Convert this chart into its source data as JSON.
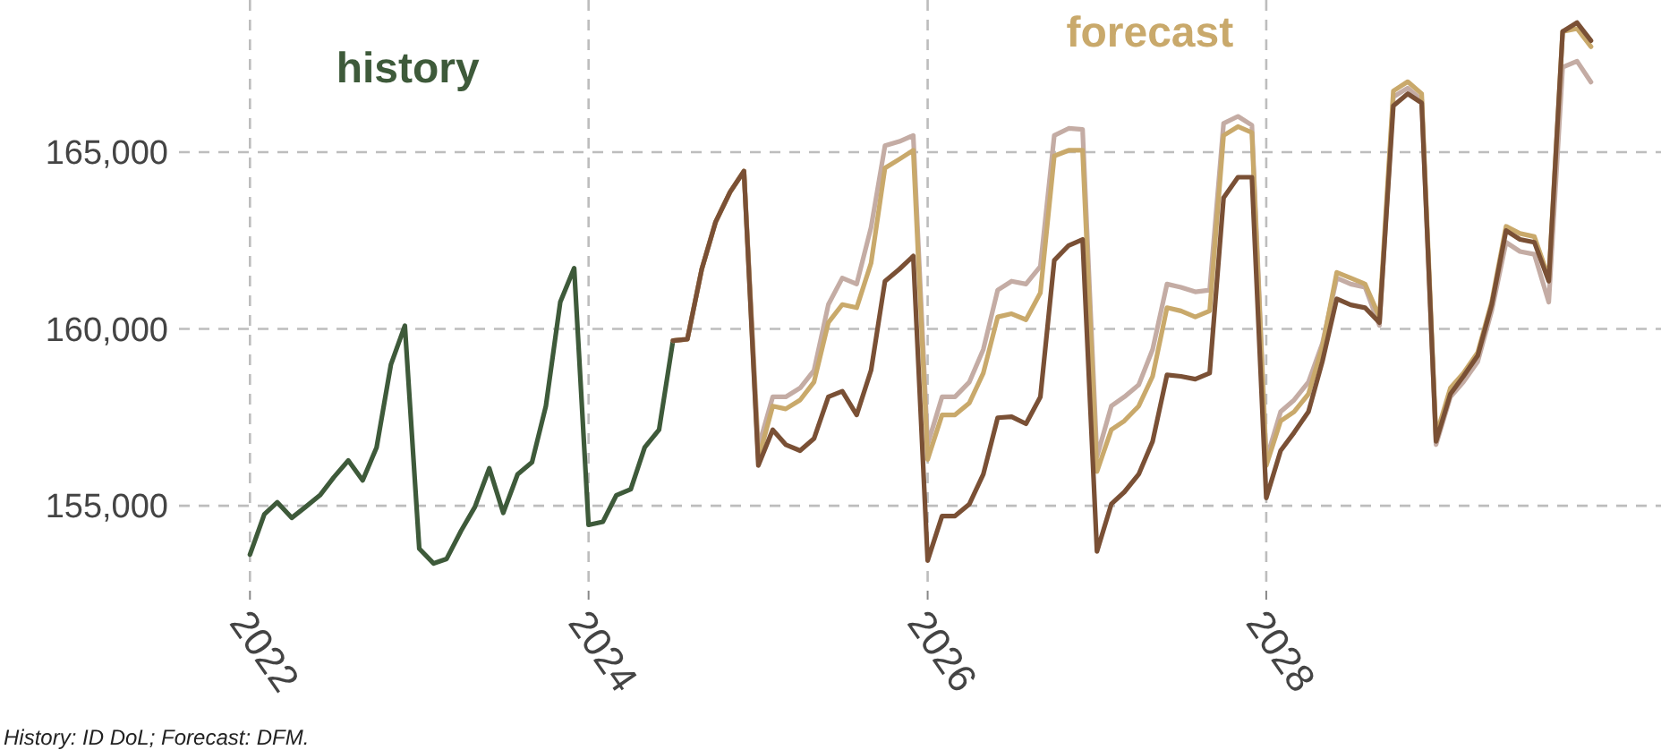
{
  "chart_data": {
    "type": "line",
    "annotations": [
      "History: ID DoL; Forecast: DFM."
    ],
    "x": [
      "2022-01",
      "2022-02",
      "2022-03",
      "2022-04",
      "2022-05",
      "2022-06",
      "2022-07",
      "2022-08",
      "2022-09",
      "2022-10",
      "2022-11",
      "2022-12",
      "2023-01",
      "2023-02",
      "2023-03",
      "2023-04",
      "2023-05",
      "2023-06",
      "2023-07",
      "2023-08",
      "2023-09",
      "2023-10",
      "2023-11",
      "2023-12",
      "2024-01",
      "2024-02",
      "2024-03",
      "2024-04",
      "2024-05",
      "2024-06",
      "2024-07",
      "2024-08",
      "2024-09",
      "2024-10",
      "2024-11",
      "2024-12",
      "2025-01",
      "2025-02",
      "2025-03",
      "2025-04",
      "2025-05",
      "2025-06",
      "2025-07",
      "2025-08",
      "2025-09",
      "2025-10",
      "2025-11",
      "2025-12",
      "2026-01",
      "2026-02",
      "2026-03",
      "2026-04",
      "2026-05",
      "2026-06",
      "2026-07",
      "2026-08",
      "2026-09",
      "2026-10",
      "2026-11",
      "2026-12",
      "2027-01",
      "2027-02",
      "2027-03",
      "2027-04",
      "2027-05",
      "2027-06",
      "2027-07",
      "2027-08",
      "2027-09",
      "2027-10",
      "2027-11",
      "2027-12",
      "2028-01",
      "2028-02",
      "2028-03",
      "2028-04",
      "2028-05",
      "2028-06",
      "2028-07",
      "2028-08",
      "2028-09",
      "2028-10",
      "2028-11",
      "2028-12",
      "2029-01",
      "2029-02",
      "2029-03",
      "2029-04",
      "2029-05",
      "2029-06",
      "2029-07",
      "2029-08",
      "2029-09",
      "2029-10",
      "2029-11",
      "2029-12"
    ],
    "series": [
      {
        "name": "history",
        "color": "#3e5a3a",
        "values": [
          153620,
          154760,
          155100,
          154660,
          154970,
          155300,
          155810,
          156280,
          155720,
          156650,
          159000,
          160090,
          153790,
          153370,
          153500,
          154290,
          154970,
          156060,
          154800,
          155890,
          156230,
          157820,
          160760,
          161720,
          154460,
          154550,
          155300,
          155470,
          156650,
          157150,
          159670,
          null,
          null,
          null,
          null,
          null,
          null,
          null,
          null,
          null,
          null,
          null,
          null,
          null,
          null,
          null,
          null,
          null,
          null,
          null,
          null,
          null,
          null,
          null,
          null,
          null,
          null,
          null,
          null,
          null,
          null,
          null,
          null,
          null,
          null,
          null,
          null,
          null,
          null,
          null,
          null,
          null,
          null,
          null,
          null,
          null,
          null,
          null,
          null,
          null,
          null,
          null,
          null,
          null,
          null,
          null,
          null,
          null,
          null,
          null,
          null,
          null,
          null,
          null,
          null,
          null
        ]
      },
      {
        "color": "#c4aca4",
        "values": [
          null,
          null,
          null,
          null,
          null,
          null,
          null,
          null,
          null,
          null,
          null,
          null,
          null,
          null,
          null,
          null,
          null,
          null,
          null,
          null,
          null,
          null,
          null,
          null,
          null,
          null,
          null,
          null,
          null,
          null,
          159670,
          159710,
          161690,
          163030,
          163870,
          164460,
          156650,
          158080,
          158080,
          158330,
          158830,
          160690,
          161440,
          161270,
          162870,
          165180,
          165300,
          165470,
          156730,
          158080,
          158080,
          158500,
          159420,
          161100,
          161350,
          161270,
          161770,
          165470,
          165670,
          165640,
          156390,
          157820,
          158080,
          158420,
          159420,
          161270,
          161180,
          161050,
          161100,
          165810,
          166010,
          165760,
          156310,
          157660,
          157990,
          158500,
          159590,
          161440,
          161270,
          161180,
          160100,
          166560,
          166810,
          166480,
          156730,
          158080,
          158500,
          159080,
          160510,
          162450,
          162190,
          162110,
          160760,
          167400,
          167570,
          166980
        ]
      },
      {
        "name": "forecast",
        "color": "#c9a96b",
        "values": [
          null,
          null,
          null,
          null,
          null,
          null,
          null,
          null,
          null,
          null,
          null,
          null,
          null,
          null,
          null,
          null,
          null,
          null,
          null,
          null,
          null,
          null,
          null,
          null,
          null,
          null,
          null,
          null,
          null,
          null,
          159670,
          159710,
          161690,
          163030,
          163870,
          164460,
          156310,
          157820,
          157740,
          157990,
          158500,
          160180,
          160690,
          160600,
          161860,
          164550,
          164800,
          165050,
          156310,
          157570,
          157570,
          157910,
          158750,
          160340,
          160430,
          160260,
          161020,
          164890,
          165050,
          165050,
          155970,
          157150,
          157400,
          157820,
          158660,
          160600,
          160510,
          160340,
          160510,
          165470,
          165720,
          165550,
          156140,
          157400,
          157660,
          158160,
          159500,
          161600,
          161440,
          161270,
          160340,
          166730,
          166990,
          166650,
          156980,
          158330,
          158750,
          159340,
          160760,
          162900,
          162700,
          162610,
          161440,
          168410,
          168490,
          167980
        ]
      },
      {
        "color": "#7a5035",
        "values": [
          null,
          null,
          null,
          null,
          null,
          null,
          null,
          null,
          null,
          null,
          null,
          null,
          null,
          null,
          null,
          null,
          null,
          null,
          null,
          null,
          null,
          null,
          null,
          null,
          null,
          null,
          null,
          null,
          null,
          null,
          159670,
          159710,
          161690,
          163030,
          163870,
          164460,
          156140,
          157150,
          156730,
          156560,
          156900,
          158080,
          158240,
          157570,
          158830,
          161350,
          161690,
          162060,
          153450,
          154710,
          154710,
          155050,
          155890,
          157490,
          157520,
          157320,
          158080,
          161940,
          162360,
          162530,
          153710,
          155050,
          155390,
          155890,
          156820,
          158700,
          158660,
          158580,
          158750,
          163710,
          164290,
          164290,
          155220,
          156560,
          157070,
          157660,
          159080,
          160850,
          160680,
          160600,
          160180,
          166310,
          166650,
          166390,
          156820,
          158160,
          158660,
          159250,
          160680,
          162780,
          162530,
          162450,
          161350,
          168410,
          168660,
          168150
        ]
      }
    ],
    "xlim": [
      "2021-08",
      "2030-05"
    ],
    "xticks": [
      "2022",
      "2024",
      "2026",
      "2028"
    ],
    "ylim": [
      152600,
      169300
    ],
    "yticks": [
      {
        "value": 155000,
        "label": "155,000"
      },
      {
        "value": 160000,
        "label": "160,000"
      },
      {
        "value": 165000,
        "label": "165,000"
      }
    ],
    "grid": true,
    "legend": false
  }
}
